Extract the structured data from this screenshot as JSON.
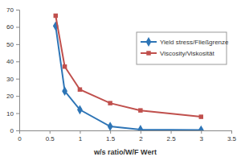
{
  "chart_data": {
    "type": "line",
    "x_label": "w/s ratio/W/F Wert",
    "x": [
      0.6,
      0.75,
      1,
      1.5,
      2,
      3
    ],
    "series": [
      {
        "name": "Yield stress/Fließgrenze",
        "color": "#2e75b6",
        "marker": "diamond",
        "values": [
          60.5,
          22.8,
          12,
          2.3,
          0.5,
          0.2
        ]
      },
      {
        "name": "Viscosity/Viskosität",
        "color": "#c0504d",
        "marker": "square",
        "values": [
          66.5,
          37,
          23.7,
          15.8,
          11.6,
          7.9
        ]
      }
    ],
    "xlim": [
      0,
      3.5
    ],
    "xticks": [
      0,
      0.5,
      1,
      1.5,
      2,
      2.5,
      3,
      3.5
    ],
    "ylim": [
      0,
      70
    ],
    "yticks": [
      0,
      10,
      20,
      30,
      40,
      50,
      60,
      70
    ],
    "grid": false,
    "legend": "upper right"
  }
}
